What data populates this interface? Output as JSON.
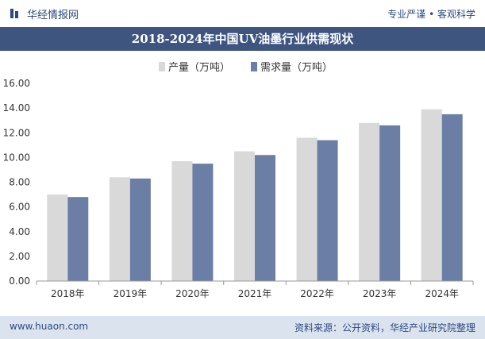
{
  "header": {
    "brand_name": "华经情报网",
    "tagline": "专业严谨 • 客观科学"
  },
  "title": "2018-2024年中国UV油墨行业供需现状",
  "colors": {
    "production": "#d9d9d9",
    "demand": "#6b7ea6",
    "title_bg": "#3e5580",
    "footer_bg": "#dbe3ef"
  },
  "chart_data": {
    "type": "bar",
    "categories": [
      "2018年",
      "2019年",
      "2020年",
      "2021年",
      "2022年",
      "2023年",
      "2024年"
    ],
    "series": [
      {
        "name": "产量（万吨）",
        "values": [
          7.0,
          8.4,
          9.7,
          10.5,
          11.6,
          12.8,
          13.9
        ]
      },
      {
        "name": "需求量（万吨）",
        "values": [
          6.8,
          8.3,
          9.5,
          10.2,
          11.4,
          12.6,
          13.5
        ]
      }
    ],
    "ylim": [
      0,
      16
    ],
    "yticks": [
      "0.00",
      "2.00",
      "4.00",
      "6.00",
      "8.00",
      "10.00",
      "12.00",
      "14.00",
      "16.00"
    ],
    "xlabel": "",
    "ylabel": "",
    "legend_position": "top",
    "grid": false
  },
  "footer": {
    "website": "www.huaon.com",
    "source": "资料来源：公开资料，华经产业研究院整理"
  }
}
